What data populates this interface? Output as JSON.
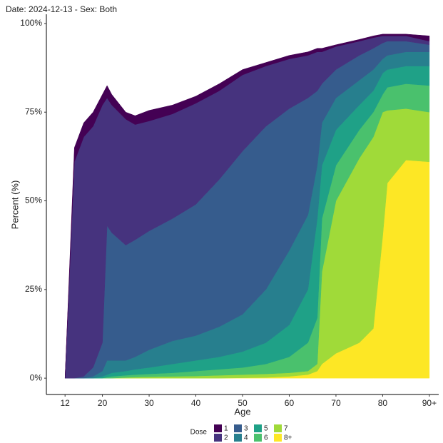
{
  "chart_data": {
    "type": "area",
    "stacked": true,
    "title": "Date: 2024-12-13 - Sex: Both",
    "xlabel": "Age",
    "ylabel": "Percent (%)",
    "legend_title": "Dose",
    "x": [
      12,
      14,
      16,
      18,
      20,
      21,
      22,
      25,
      27,
      30,
      35,
      40,
      45,
      50,
      55,
      60,
      64,
      66,
      67,
      70,
      75,
      78,
      80,
      81,
      85,
      90
    ],
    "series": [
      {
        "name": "1",
        "color": "#440154",
        "values": [
          0,
          4,
          4,
          4,
          3,
          3.5,
          3,
          2,
          2.5,
          3,
          2.5,
          2,
          2,
          1.5,
          1,
          1,
          1,
          1,
          1,
          0.5,
          0.5,
          0.5,
          0.5,
          0.5,
          0.5,
          1.5
        ]
      },
      {
        "name": "2",
        "color": "#46337e",
        "values": [
          0,
          61,
          67.5,
          68,
          67,
          36,
          36,
          35.5,
          32.5,
          31,
          29.5,
          28.5,
          25,
          21.5,
          17,
          14,
          12,
          11,
          9,
          6.5,
          4,
          3,
          2,
          1.5,
          1.5,
          1
        ]
      },
      {
        "name": "3",
        "color": "#365c8d",
        "values": [
          0,
          0,
          0.5,
          2.5,
          8,
          38,
          36,
          32.5,
          33,
          33.5,
          34.5,
          37,
          41.5,
          46,
          46,
          40,
          33,
          21,
          11,
          8,
          7,
          6,
          4.5,
          4,
          3,
          2
        ]
      },
      {
        "name": "4",
        "color": "#277f8e",
        "values": [
          0,
          0,
          0,
          0.5,
          1.5,
          4,
          3.5,
          3,
          3.5,
          5,
          6.5,
          7,
          8.5,
          10.5,
          15,
          21,
          21,
          15,
          12,
          9,
          7,
          6,
          4,
          4,
          4,
          4
        ]
      },
      {
        "name": "5",
        "color": "#1fa187",
        "values": [
          0,
          0,
          0,
          0,
          0.5,
          0.7,
          1,
          1.2,
          1.5,
          1.8,
          2.5,
          3,
          3.5,
          4.5,
          6,
          9,
          15,
          28,
          15,
          10,
          7,
          6,
          6,
          5,
          5,
          5.5
        ]
      },
      {
        "name": "6",
        "color": "#4ac16d",
        "values": [
          0,
          0,
          0,
          0,
          0,
          0.3,
          0.5,
          0.6,
          0.7,
          0.8,
          1,
          1.4,
          1.7,
          2,
          2.8,
          4.5,
          8,
          13,
          15,
          10,
          8,
          7,
          5,
          6.5,
          7,
          7.5
        ]
      },
      {
        "name": "7",
        "color": "#a0da39",
        "values": [
          0,
          0,
          0,
          0,
          0,
          0,
          0,
          0.2,
          0.3,
          0.4,
          0.5,
          0.6,
          0.8,
          0.9,
          1,
          1,
          1,
          2,
          26,
          43,
          52,
          54,
          35,
          20.5,
          14.5,
          14
        ]
      },
      {
        "name": "8+",
        "color": "#fde725",
        "values": [
          0,
          0,
          0,
          0,
          0,
          0,
          0,
          0,
          0,
          0,
          0,
          0,
          0,
          0.1,
          0.2,
          0.5,
          1,
          2,
          4,
          7,
          10,
          14,
          40,
          55,
          61.5,
          61
        ]
      }
    ],
    "xlim": [
      8,
      92
    ],
    "ylim": [
      -4.6,
      102.6
    ],
    "xticks": [
      12,
      20,
      30,
      40,
      50,
      60,
      70,
      80,
      {
        "value": 90,
        "label": "90+"
      }
    ],
    "yticks": [
      {
        "value": 0,
        "label": "0%"
      },
      {
        "value": 25,
        "label": "25%"
      },
      {
        "value": 50,
        "label": "50%"
      },
      {
        "value": 75,
        "label": "75%"
      },
      {
        "value": 100,
        "label": "100%"
      }
    ]
  }
}
